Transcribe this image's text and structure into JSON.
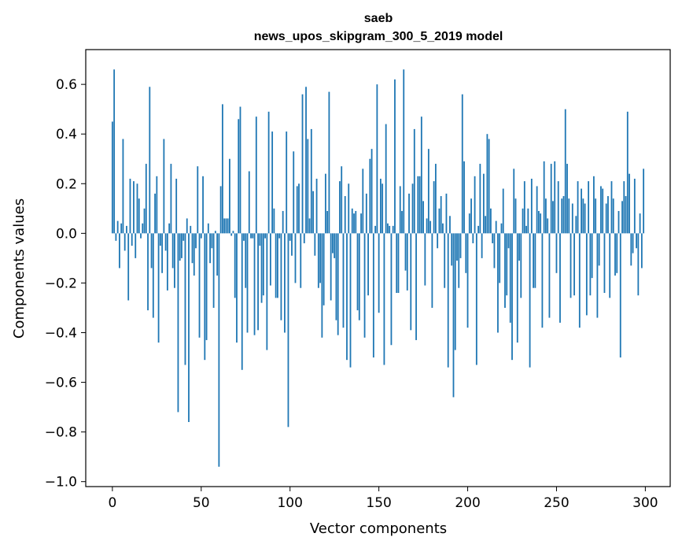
{
  "chart_data": {
    "type": "bar",
    "title": "saeb",
    "subtitle": "news_upos_skipgram_300_5_2019 model",
    "xlabel": "Vector components",
    "ylabel": "Components values",
    "xlim": [
      -15,
      314
    ],
    "ylim": [
      -1.02,
      0.74
    ],
    "xticks": [
      0,
      50,
      100,
      150,
      200,
      250,
      300
    ],
    "xtick_labels": [
      "0",
      "50",
      "100",
      "150",
      "200",
      "250",
      "300"
    ],
    "yticks": [
      -1.0,
      -0.8,
      -0.6,
      -0.4,
      -0.2,
      0.0,
      0.2,
      0.4,
      0.6
    ],
    "ytick_labels": [
      "−1.0",
      "−0.8",
      "−0.6",
      "−0.4",
      "−0.2",
      "0.0",
      "0.2",
      "0.4",
      "0.6"
    ],
    "grid": false,
    "bar_color": "#1f77b4",
    "values": [
      0.45,
      0.66,
      -0.03,
      0.05,
      -0.14,
      0.04,
      0.38,
      -0.07,
      0.03,
      -0.27,
      0.22,
      -0.05,
      0.21,
      -0.1,
      0.2,
      0.14,
      -0.02,
      0.04,
      0.1,
      0.28,
      -0.31,
      0.59,
      -0.14,
      -0.34,
      0.16,
      0.23,
      -0.44,
      -0.05,
      -0.16,
      0.38,
      -0.07,
      -0.23,
      0.04,
      0.28,
      -0.14,
      -0.22,
      0.22,
      -0.72,
      -0.11,
      -0.1,
      -0.03,
      -0.53,
      0.06,
      -0.76,
      0.03,
      -0.12,
      -0.17,
      -0.06,
      0.27,
      -0.42,
      -0.02,
      0.23,
      -0.51,
      -0.43,
      0.04,
      -0.12,
      -0.06,
      -0.3,
      0.01,
      -0.17,
      -0.94,
      0.19,
      0.52,
      0.06,
      0.06,
      0.06,
      0.3,
      -0.01,
      0.01,
      -0.26,
      -0.44,
      0.46,
      0.51,
      -0.55,
      -0.03,
      -0.22,
      -0.4,
      0.25,
      -0.02,
      -0.02,
      -0.41,
      0.47,
      -0.39,
      -0.05,
      -0.28,
      -0.25,
      -0.02,
      -0.47,
      0.49,
      -0.21,
      0.41,
      0.1,
      -0.26,
      -0.26,
      -0.02,
      -0.35,
      0.09,
      -0.4,
      0.41,
      -0.78,
      -0.03,
      -0.09,
      0.33,
      -0.2,
      0.19,
      0.2,
      -0.22,
      0.56,
      -0.04,
      0.59,
      0.38,
      0.06,
      0.42,
      0.17,
      -0.09,
      0.22,
      -0.22,
      -0.2,
      -0.42,
      -0.29,
      0.24,
      0.09,
      0.57,
      -0.27,
      -0.08,
      -0.1,
      -0.35,
      -0.41,
      0.21,
      0.27,
      -0.38,
      0.15,
      -0.51,
      0.2,
      -0.54,
      0.1,
      0.08,
      0.09,
      -0.31,
      -0.35,
      0.08,
      0.26,
      -0.42,
      0.16,
      -0.25,
      0.3,
      0.34,
      -0.5,
      0.03,
      0.6,
      -0.32,
      0.22,
      0.2,
      -0.53,
      0.44,
      0.04,
      0.03,
      -0.45,
      0.03,
      0.62,
      -0.24,
      -0.24,
      0.19,
      0.09,
      0.66,
      -0.15,
      -0.23,
      0.16,
      -0.39,
      0.2,
      0.42,
      -0.43,
      0.23,
      0.23,
      0.47,
      0.13,
      -0.21,
      0.06,
      0.34,
      0.05,
      -0.3,
      0.21,
      0.28,
      -0.06,
      0.1,
      0.15,
      0.04,
      -0.22,
      0.16,
      -0.54,
      0.07,
      -0.13,
      -0.66,
      -0.47,
      -0.11,
      -0.22,
      -0.1,
      0.56,
      0.29,
      -0.16,
      -0.38,
      0.08,
      0.14,
      -0.04,
      0.23,
      -0.53,
      0.03,
      0.28,
      -0.1,
      0.24,
      0.07,
      0.4,
      0.38,
      0.1,
      -0.04,
      -0.14,
      0.05,
      -0.4,
      -0.2,
      0.04,
      0.18,
      -0.3,
      -0.25,
      -0.06,
      -0.36,
      -0.51,
      0.26,
      0.14,
      -0.44,
      -0.11,
      -0.26,
      0.1,
      0.21,
      0.03,
      0.1,
      -0.54,
      0.22,
      -0.22,
      -0.22,
      0.19,
      0.09,
      0.08,
      -0.38,
      0.29,
      0.14,
      0.06,
      -0.34,
      0.28,
      0.13,
      0.29,
      -0.16,
      0.21,
      -0.36,
      0.14,
      0.15,
      0.5,
      0.28,
      0.14,
      -0.26,
      0.12,
      -0.25,
      0.07,
      0.21,
      -0.38,
      0.18,
      0.14,
      0.12,
      -0.33,
      0.21,
      -0.25,
      -0.18,
      0.23,
      0.14,
      -0.34,
      -0.13,
      0.19,
      0.18,
      -0.24,
      0.12,
      0.15,
      -0.26,
      0.21,
      0.14,
      -0.17,
      -0.16,
      0.09,
      -0.5,
      0.13,
      0.21,
      0.15,
      0.49,
      0.24,
      -0.13,
      -0.08,
      0.22,
      -0.06,
      -0.25,
      0.08,
      -0.14,
      0.26
    ]
  }
}
